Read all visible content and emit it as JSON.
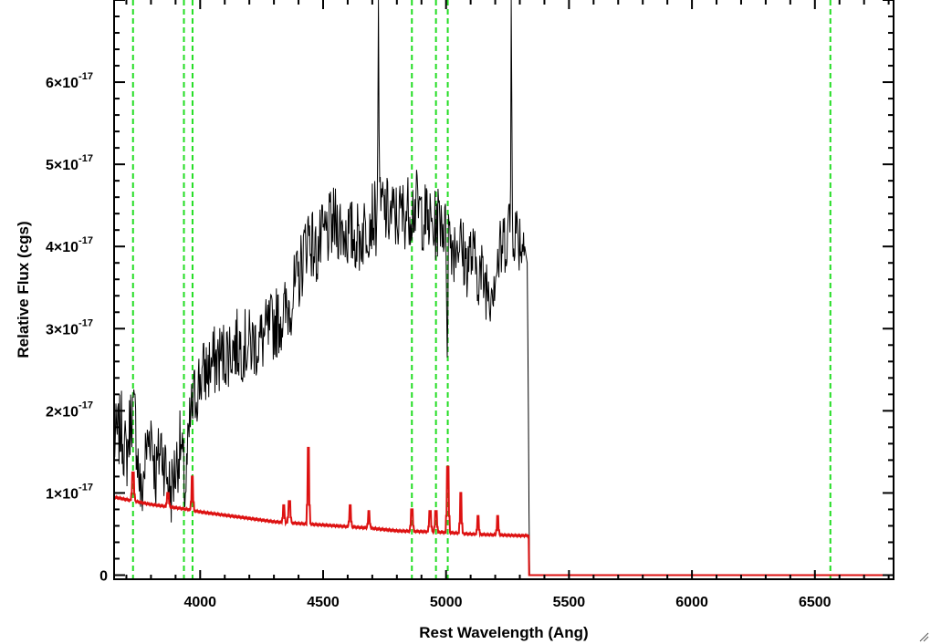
{
  "chart_data": {
    "type": "line",
    "xlabel": "Rest Wavelength (Ang)",
    "ylabel": "Relative Flux (cgs)",
    "xlim": [
      3650,
      6820
    ],
    "ylim": [
      -5e-19,
      7e-17
    ],
    "x_ticks": [
      4000,
      4500,
      5000,
      5500,
      6000,
      6500
    ],
    "y_ticks": [
      {
        "value": 0,
        "label": "0"
      },
      {
        "value": 1e-17,
        "mantissa": "1",
        "base": "×10",
        "exponent": "-17"
      },
      {
        "value": 2e-17,
        "mantissa": "2",
        "base": "×10",
        "exponent": "-17"
      },
      {
        "value": 3e-17,
        "mantissa": "3",
        "base": "×10",
        "exponent": "-17"
      },
      {
        "value": 4e-17,
        "mantissa": "4",
        "base": "×10",
        "exponent": "-17"
      },
      {
        "value": 5e-17,
        "mantissa": "5",
        "base": "×10",
        "exponent": "-17"
      },
      {
        "value": 6e-17,
        "mantissa": "6",
        "base": "×10",
        "exponent": "-17"
      }
    ],
    "grid": false,
    "series": [
      {
        "color": "#000000",
        "x": [
          3650,
          3680,
          3700,
          3720,
          3735,
          3750,
          3760,
          3780,
          3800,
          3820,
          3840,
          3860,
          3880,
          3900,
          3920,
          3940,
          3960,
          3980,
          4000,
          4030,
          4060,
          4100,
          4150,
          4200,
          4250,
          4300,
          4350,
          4400,
          4420,
          4440,
          4470,
          4500,
          4550,
          4600,
          4650,
          4700,
          4720,
          4725,
          4730,
          4740,
          4760,
          4800,
          4850,
          4880,
          4900,
          4930,
          4950,
          4980,
          5000,
          5005,
          5010,
          5030,
          5050,
          5080,
          5100,
          5150,
          5180,
          5200,
          5230,
          5250,
          5262,
          5265,
          5270,
          5280,
          5300,
          5320,
          5330,
          5335,
          5338,
          5340,
          6820
        ],
        "y": [
          1.6e-17,
          1.8e-17,
          1.4e-17,
          2e-17,
          1.9e-17,
          1.3e-17,
          9e-18,
          1.5e-17,
          1.8e-17,
          1.2e-17,
          1.6e-17,
          1.3e-17,
          1e-17,
          1.3e-17,
          1.6e-17,
          1e-17,
          1.9e-17,
          2.2e-17,
          2.4e-17,
          2.5e-17,
          2.6e-17,
          2.7e-17,
          2.8e-17,
          2.8e-17,
          2.85e-17,
          3.05e-17,
          3.2e-17,
          3.6e-17,
          3.9e-17,
          4.2e-17,
          3.9e-17,
          4.1e-17,
          4.3e-17,
          4.15e-17,
          4.1e-17,
          4.4e-17,
          4.3e-17,
          7e-17,
          4.4e-17,
          4.5e-17,
          4.4e-17,
          4.35e-17,
          4.45e-17,
          4.5e-17,
          4.4e-17,
          4.3e-17,
          4.2e-17,
          4.4e-17,
          4.1e-17,
          2.9e-17,
          4.2e-17,
          4e-17,
          4.1e-17,
          3.8e-17,
          3.9e-17,
          3.6e-17,
          3.5e-17,
          3.7e-17,
          4e-17,
          4.2e-17,
          4.3e-17,
          7e-17,
          4.3e-17,
          4.2e-17,
          4.1e-17,
          4e-17,
          3.8e-17,
          2e-17,
          5e-18,
          0,
          0
        ],
        "noise": 4.5e-18,
        "noise_xmax": 5320
      },
      {
        "color": "#dd1111",
        "x": [
          3650,
          3700,
          3750,
          3800,
          3850,
          3900,
          3950,
          4000,
          4100,
          4200,
          4300,
          4400,
          4500,
          4600,
          4700,
          4800,
          4900,
          5000,
          5100,
          5200,
          5300,
          5336,
          5337,
          6820
        ],
        "y": [
          9.5e-18,
          9.2e-18,
          8.9e-18,
          8.6e-18,
          8.4e-18,
          8.2e-18,
          8e-18,
          7.7e-18,
          7.3e-18,
          6.9e-18,
          6.5e-18,
          6.3e-18,
          6.1e-18,
          5.9e-18,
          5.7e-18,
          5.4e-18,
          5.3e-18,
          5.2e-18,
          5e-18,
          4.9e-18,
          4.8e-18,
          4.8e-18,
          0,
          0
        ],
        "lines": [
          {
            "x": 3727,
            "peak": 1.25e-17
          },
          {
            "x": 3869,
            "peak": 1e-17
          },
          {
            "x": 3968,
            "peak": 1.2e-17
          },
          {
            "x": 4340,
            "peak": 8.5e-18
          },
          {
            "x": 4363,
            "peak": 9e-18
          },
          {
            "x": 4440,
            "peak": 1.55e-17
          },
          {
            "x": 4610,
            "peak": 8.5e-18
          },
          {
            "x": 4686,
            "peak": 7.8e-18
          },
          {
            "x": 4861,
            "peak": 8e-18
          },
          {
            "x": 4935,
            "peak": 7.8e-18
          },
          {
            "x": 4959,
            "peak": 7.8e-18
          },
          {
            "x": 5007,
            "peak": 1.32e-17
          },
          {
            "x": 5060,
            "peak": 1e-17
          },
          {
            "x": 5130,
            "peak": 7.2e-18
          },
          {
            "x": 5210,
            "peak": 7.2e-18
          }
        ]
      }
    ],
    "vlines": [
      {
        "x": 3727,
        "color": "#22dd22",
        "style": "dashed"
      },
      {
        "x": 3934,
        "color": "#22dd22",
        "style": "dashed"
      },
      {
        "x": 3969,
        "color": "#22dd22",
        "style": "dashed"
      },
      {
        "x": 4861,
        "color": "#22dd22",
        "style": "dashed"
      },
      {
        "x": 4959,
        "color": "#22dd22",
        "style": "dashed"
      },
      {
        "x": 5007,
        "color": "#22dd22",
        "style": "dashed"
      },
      {
        "x": 6563,
        "color": "#22dd22",
        "style": "dashed"
      }
    ]
  }
}
